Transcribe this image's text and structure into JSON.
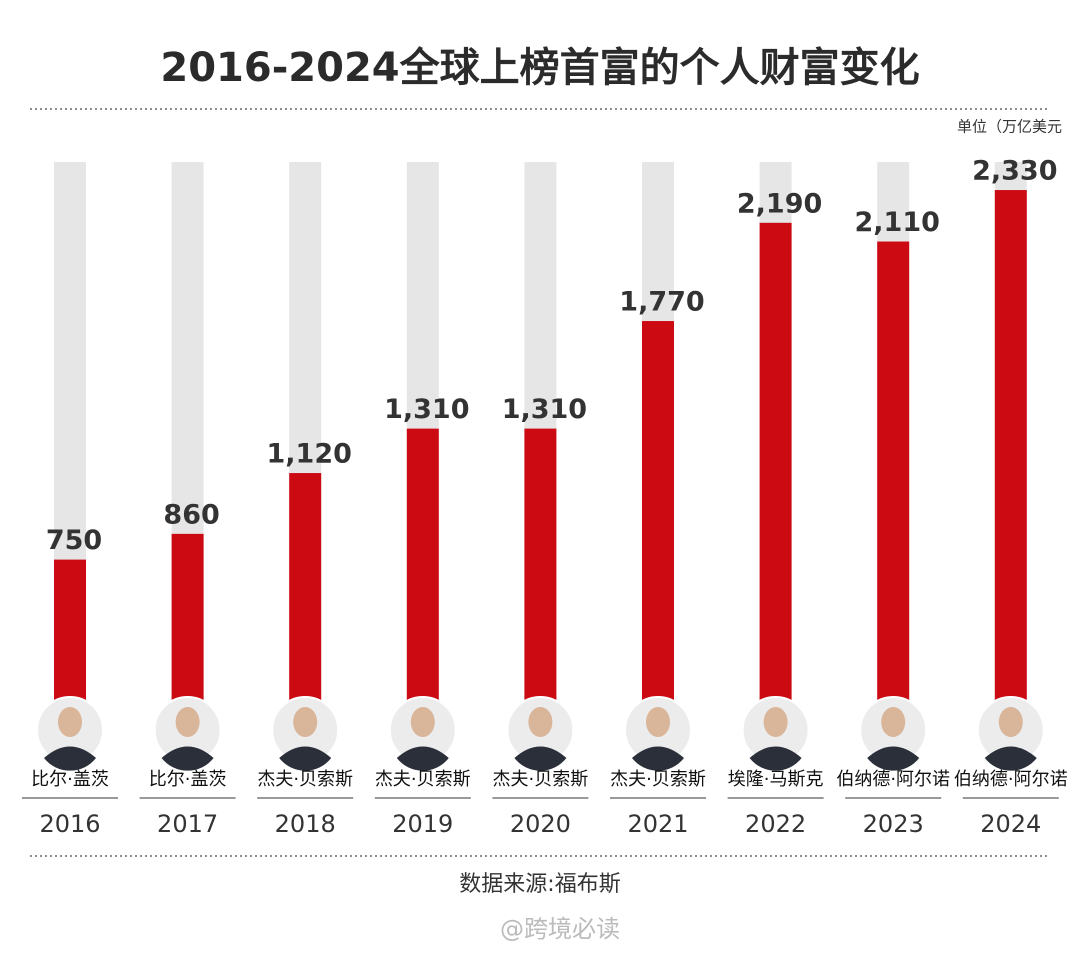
{
  "chart_data": {
    "type": "bar",
    "title": "2016-2024全球上榜首富的个人财富变化",
    "unit": "单位（万亿美元",
    "source": "数据来源:福布斯",
    "watermark": "@跨境必读",
    "categories": [
      "2016",
      "2017",
      "2018",
      "2019",
      "2020",
      "2021",
      "2022",
      "2023",
      "2024"
    ],
    "names": [
      "比尔·盖茨",
      "比尔·盖茨",
      "杰夫·贝索斯",
      "杰夫·贝索斯",
      "杰夫·贝索斯",
      "杰夫·贝索斯",
      "埃隆·马斯克",
      "伯纳德·阿尔诺",
      "伯纳德·阿尔诺"
    ],
    "values": [
      750,
      860,
      1120,
      1310,
      1310,
      1770,
      2190,
      2110,
      2330
    ],
    "value_labels": [
      "750",
      "860",
      "1,120",
      "1,310",
      "1,310",
      "1,770",
      "2,190",
      "2,110",
      "2,330"
    ],
    "ylim": [
      0,
      2450
    ],
    "color": "#cc0a12",
    "track_color": "#e6e6e6"
  }
}
